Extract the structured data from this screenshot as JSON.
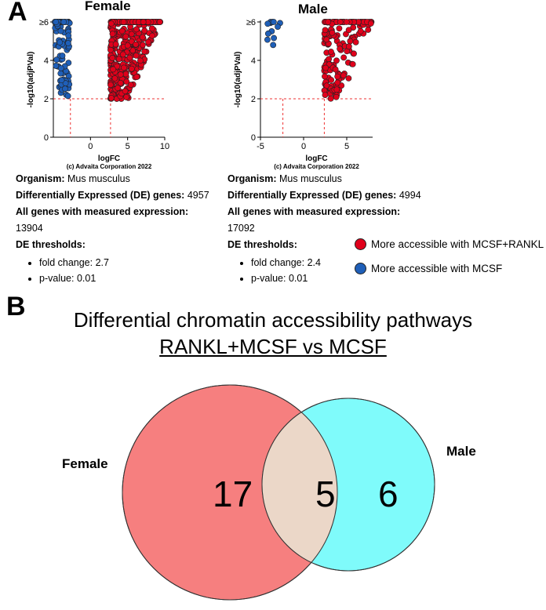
{
  "panel_a": {
    "letter": "A",
    "plots": [
      {
        "title": "Female",
        "y_label": "-log10(adjPVal)",
        "x_label": "logFC",
        "copyright": "(c) Advaita Corporation 2022",
        "x_ticks": [
          "0",
          "5",
          "10"
        ],
        "y_ticks": [
          "0",
          "2",
          "4",
          "≥6"
        ],
        "info": {
          "organism_label": "Organism:",
          "organism_value": "Mus musculus",
          "de_label": "Differentially Expressed (DE) genes:",
          "de_value": "4957",
          "all_label": "All genes with measured expression:",
          "all_value": "13904",
          "thr_label": "DE thresholds:",
          "fold_change": "fold change: 2.7",
          "p_value": "p-value: 0.01"
        }
      },
      {
        "title": "Male",
        "y_label": "-log10(adjPVal)",
        "x_label": "logFC",
        "copyright": "(c) Advaita Corporation 2022",
        "x_ticks": [
          "-5",
          "0",
          "5"
        ],
        "y_ticks": [
          "0",
          "2",
          "4",
          "≥6"
        ],
        "info": {
          "organism_label": "Organism:",
          "organism_value": "Mus musculus",
          "de_label": "Differentially Expressed (DE) genes:",
          "de_value": "4994",
          "all_label": "All genes with measured expression:",
          "all_value": "17092",
          "thr_label": "DE thresholds:",
          "fold_change": "fold change: 2.4",
          "p_value": "p-value: 0.01"
        }
      }
    ],
    "legend": {
      "red_label": "More accessible with MCSF+RANKL",
      "blue_label": "More accessible with MCSF",
      "red_color": "#e0001b",
      "blue_color": "#1f5fb8"
    }
  },
  "chart_data": [
    {
      "type": "scatter",
      "title": "Female",
      "xlabel": "logFC",
      "ylabel": "-log10(adjPVal)",
      "xlim": [
        -5,
        10
      ],
      "ylim": [
        0,
        6
      ],
      "thresholds": {
        "logFC": [
          -2.7,
          2.7
        ],
        "neg_log10_p": 2
      },
      "series": [
        {
          "name": "More accessible with MCSF",
          "color": "#1f5fb8",
          "x_range": [
            -4.8,
            -2.8
          ],
          "y_range": [
            2,
            6
          ]
        },
        {
          "name": "More accessible with MCSF+RANKL",
          "color": "#e0001b",
          "x_range": [
            2.7,
            9.5
          ],
          "y_range": [
            2,
            6
          ]
        }
      ]
    },
    {
      "type": "scatter",
      "title": "Male",
      "xlabel": "logFC",
      "ylabel": "-log10(adjPVal)",
      "xlim": [
        -5,
        8
      ],
      "ylim": [
        0,
        6
      ],
      "thresholds": {
        "logFC": [
          -2.4,
          2.4
        ],
        "neg_log10_p": 2
      },
      "series": [
        {
          "name": "More accessible with MCSF",
          "color": "#1f5fb8",
          "x_range": [
            -4.2,
            -2.5
          ],
          "y_range": [
            4.8,
            6
          ]
        },
        {
          "name": "More accessible with MCSF+RANKL",
          "color": "#e0001b",
          "x_range": [
            2.4,
            8
          ],
          "y_range": [
            2,
            6
          ]
        }
      ]
    }
  ],
  "panel_b": {
    "letter": "B",
    "title": "Differential chromatin accessibility pathways",
    "subtitle": "RANKL+MCSF vs MCSF",
    "venn": {
      "left_label": "Female",
      "right_label": "Male",
      "left_only": "17",
      "overlap": "5",
      "right_only": "6",
      "left_color": "#f67f7f",
      "right_color": "#7ffbfb",
      "overlap_color": "#ebd7c8"
    }
  }
}
